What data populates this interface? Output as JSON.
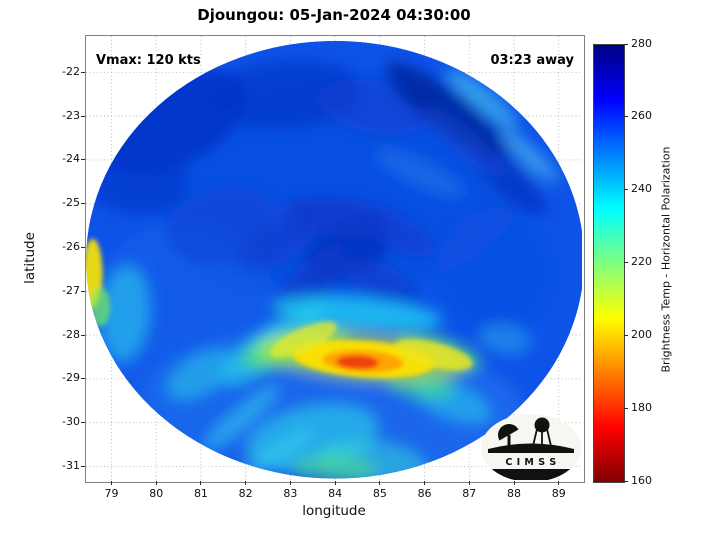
{
  "logo": {
    "text": "C I M S S"
  },
  "chart_data": {
    "type": "heatmap",
    "title": "Djoungou: 05-Jan-2024 04:30:00",
    "annotations": {
      "vmax": "Vmax: 120 kts",
      "eta": "03:23 away"
    },
    "xlabel": "longitude",
    "ylabel": "latitude",
    "xlim": [
      78.43,
      89.52
    ],
    "ylim": [
      -31.31,
      -21.17
    ],
    "x_ticks": [
      79,
      80,
      81,
      82,
      83,
      84,
      85,
      86,
      87,
      88,
      89
    ],
    "y_ticks": [
      -22,
      -23,
      -24,
      -25,
      -26,
      -27,
      -28,
      -29,
      -30,
      -31
    ],
    "grid": true,
    "colorbar": {
      "label": "Brightness Temp - Horizontal Polarization",
      "range": [
        160,
        280
      ],
      "ticks": [
        160,
        180,
        200,
        220,
        240,
        260,
        280
      ],
      "colormap": "jet-reversed",
      "stops": [
        {
          "frac": 0.0,
          "color": "#7f0000"
        },
        {
          "frac": 0.125,
          "color": "#ff0000"
        },
        {
          "frac": 0.375,
          "color": "#ffff00"
        },
        {
          "frac": 0.625,
          "color": "#00ffff"
        },
        {
          "frac": 0.875,
          "color": "#0000ff"
        },
        {
          "frac": 1.0,
          "color": "#000080"
        }
      ]
    },
    "swath": {
      "center_lon": 84.0,
      "center_lat": -26.28,
      "rx_deg": 5.57,
      "ry_deg": 5.0,
      "base_color": "#0d53e8"
    },
    "features": [
      {
        "lon": 84.2,
        "lat": -24.6,
        "rx": 4.2,
        "ry": 2.6,
        "rot": -8,
        "color": "#0b49dc",
        "opacity": 0.5,
        "layer": "soft"
      },
      {
        "lon": 84.0,
        "lat": -29.6,
        "rx": 4.3,
        "ry": 1.7,
        "rot": 4,
        "color": "#2e83f0",
        "opacity": 0.4,
        "layer": "soft"
      },
      {
        "lon": 80.6,
        "lat": -27.8,
        "rx": 2.2,
        "ry": 2.4,
        "rot": 0,
        "color": "#1b66ea",
        "opacity": 0.4,
        "layer": "soft"
      },
      {
        "lon": 80.3,
        "lat": -23.1,
        "rx": 1.8,
        "ry": 1.05,
        "rot": -24,
        "color": "#0531c4",
        "opacity": 0.8,
        "layer": "soft"
      },
      {
        "lon": 79.5,
        "lat": -24.4,
        "rx": 1.2,
        "ry": 0.85,
        "rot": 8,
        "color": "#0636c9",
        "opacity": 0.65,
        "layer": "soft"
      },
      {
        "lon": 82.9,
        "lat": -22.5,
        "rx": 1.7,
        "ry": 0.8,
        "rot": -4,
        "color": "#0634c4",
        "opacity": 0.6,
        "layer": "soft"
      },
      {
        "lon": 84.9,
        "lat": -22.8,
        "rx": 1.3,
        "ry": 0.6,
        "rot": 10,
        "color": "#0a3cd0",
        "opacity": 0.5,
        "layer": "soft"
      },
      {
        "lon": 86.5,
        "lat": -22.9,
        "rx": 1.7,
        "ry": 0.45,
        "rot": 38,
        "color": "#05259c",
        "opacity": 0.85,
        "layer": "soft"
      },
      {
        "lon": 87.9,
        "lat": -24.5,
        "rx": 1.1,
        "ry": 0.33,
        "rot": 42,
        "color": "#0730bd",
        "opacity": 0.7,
        "layer": "soft"
      },
      {
        "lon": 86.9,
        "lat": -23.6,
        "rx": 1.2,
        "ry": 0.3,
        "rot": 40,
        "color": "#0a47d6",
        "opacity": 0.5,
        "layer": "soft"
      },
      {
        "lon": 84.25,
        "lat": -26.1,
        "rx": 1.0,
        "ry": 0.6,
        "rot": -22,
        "color": "#0634bf",
        "opacity": 0.85,
        "layer": "soft"
      },
      {
        "lon": 83.4,
        "lat": -26.85,
        "rx": 1.1,
        "ry": 0.42,
        "rot": -48,
        "color": "#083ac9",
        "opacity": 0.75,
        "layer": "soft"
      },
      {
        "lon": 85.05,
        "lat": -26.8,
        "rx": 0.95,
        "ry": 0.4,
        "rot": 28,
        "color": "#083ac9",
        "opacity": 0.6,
        "layer": "soft"
      },
      {
        "lon": 84.0,
        "lat": -25.3,
        "rx": 1.15,
        "ry": 0.45,
        "rot": 8,
        "color": "#0835c2",
        "opacity": 0.6,
        "layer": "soft"
      },
      {
        "lon": 85.3,
        "lat": -25.6,
        "rx": 1.0,
        "ry": 0.4,
        "rot": 30,
        "color": "#0939cc",
        "opacity": 0.55,
        "layer": "soft"
      },
      {
        "lon": 82.7,
        "lat": -25.9,
        "rx": 1.0,
        "ry": 0.45,
        "rot": -30,
        "color": "#0939cc",
        "opacity": 0.55,
        "layer": "soft"
      },
      {
        "lon": 81.5,
        "lat": -25.5,
        "rx": 1.3,
        "ry": 0.85,
        "rot": -12,
        "color": "#0a40d2",
        "opacity": 0.5,
        "layer": "soft"
      },
      {
        "lon": 84.7,
        "lat": -27.95,
        "rx": 2.0,
        "ry": 0.32,
        "rot": 4,
        "color": "#0a42d4",
        "opacity": 0.55,
        "layer": "soft"
      },
      {
        "lon": 87.6,
        "lat": -26.6,
        "rx": 1.3,
        "ry": 1.5,
        "rot": 0,
        "color": "#0c4fe2",
        "opacity": 0.5,
        "layer": "soft"
      },
      {
        "lon": 84.5,
        "lat": -27.5,
        "rx": 1.9,
        "ry": 0.36,
        "rot": 5,
        "color": "#1ecdf2",
        "opacity": 0.8,
        "layer": "soft"
      },
      {
        "lon": 82.9,
        "lat": -27.95,
        "rx": 0.95,
        "ry": 0.34,
        "rot": -32,
        "color": "#26d6f0",
        "opacity": 0.7,
        "layer": "soft"
      },
      {
        "lon": 82.2,
        "lat": -28.5,
        "rx": 0.9,
        "ry": 0.4,
        "rot": -38,
        "color": "#2ad8ee",
        "opacity": 0.6,
        "layer": "soft"
      },
      {
        "lon": 83.5,
        "lat": -30.35,
        "rx": 1.5,
        "ry": 0.75,
        "rot": -12,
        "color": "#2bd5e8",
        "opacity": 0.6,
        "layer": "soft"
      },
      {
        "lon": 84.8,
        "lat": -30.9,
        "rx": 1.25,
        "ry": 0.5,
        "rot": 6,
        "color": "#36d9d8",
        "opacity": 0.55,
        "layer": "soft"
      },
      {
        "lon": 81.0,
        "lat": -28.9,
        "rx": 0.85,
        "ry": 0.45,
        "rot": -30,
        "color": "#2bd4ea",
        "opacity": 0.5,
        "layer": "soft"
      },
      {
        "lon": 79.3,
        "lat": -27.5,
        "rx": 0.55,
        "ry": 1.1,
        "rot": 4,
        "color": "#2ed8ec",
        "opacity": 0.55,
        "layer": "soft"
      },
      {
        "lon": 86.6,
        "lat": -29.5,
        "rx": 0.95,
        "ry": 0.42,
        "rot": 22,
        "color": "#28d0ee",
        "opacity": 0.55,
        "layer": "soft"
      },
      {
        "lon": 87.8,
        "lat": -28.1,
        "rx": 0.6,
        "ry": 0.35,
        "rot": 10,
        "color": "#2fb4ee",
        "opacity": 0.45,
        "layer": "soft"
      },
      {
        "lon": 81.9,
        "lat": -29.9,
        "rx": 1.1,
        "ry": 0.24,
        "rot": -40,
        "color": "#33daee",
        "opacity": 0.5,
        "layer": "soft"
      },
      {
        "lon": 82.7,
        "lat": -30.7,
        "rx": 1.0,
        "ry": 0.22,
        "rot": -34,
        "color": "#38dcee",
        "opacity": 0.45,
        "layer": "soft"
      },
      {
        "lon": 87.3,
        "lat": -22.6,
        "rx": 1.0,
        "ry": 0.24,
        "rot": 40,
        "color": "#55e5f3",
        "opacity": 0.5,
        "layer": "soft"
      },
      {
        "lon": 88.35,
        "lat": -23.9,
        "rx": 0.85,
        "ry": 0.2,
        "rot": 43,
        "color": "#68e9f4",
        "opacity": 0.45,
        "layer": "soft"
      },
      {
        "lon": 85.9,
        "lat": -24.3,
        "rx": 1.1,
        "ry": 0.3,
        "rot": 25,
        "color": "#2f86ee",
        "opacity": 0.4,
        "layer": "soft"
      },
      {
        "lon": 83.1,
        "lat": -28.3,
        "rx": 1.25,
        "ry": 0.38,
        "rot": -14,
        "color": "#4fe07c",
        "opacity": 0.8,
        "layer": "soft"
      },
      {
        "lon": 86.3,
        "lat": -28.4,
        "rx": 1.0,
        "ry": 0.33,
        "rot": 16,
        "color": "#52e27e",
        "opacity": 0.75,
        "layer": "soft"
      },
      {
        "lon": 85.9,
        "lat": -29.15,
        "rx": 0.8,
        "ry": 0.3,
        "rot": 10,
        "color": "#46dd88",
        "opacity": 0.6,
        "layer": "soft"
      },
      {
        "lon": 84.0,
        "lat": -31.05,
        "rx": 0.95,
        "ry": 0.33,
        "rot": 2,
        "color": "#55e07e",
        "opacity": 0.5,
        "layer": "soft"
      },
      {
        "lon": 84.6,
        "lat": -28.5,
        "rx": 2.35,
        "ry": 0.55,
        "rot": 5,
        "color": "#c8e62e",
        "opacity": 0.6,
        "layer": "soft"
      },
      {
        "lon": 84.65,
        "lat": -28.55,
        "rx": 1.6,
        "ry": 0.42,
        "rot": 4,
        "color": "#ffdf05",
        "opacity": 0.95,
        "layer": "sharp"
      },
      {
        "lon": 86.2,
        "lat": -28.45,
        "rx": 0.9,
        "ry": 0.28,
        "rot": 14,
        "color": "#eee41e",
        "opacity": 0.8,
        "layer": "sharp"
      },
      {
        "lon": 83.3,
        "lat": -28.1,
        "rx": 0.8,
        "ry": 0.26,
        "rot": -24,
        "color": "#e3e92e",
        "opacity": 0.75,
        "layer": "sharp"
      },
      {
        "lon": 84.62,
        "lat": -28.6,
        "rx": 0.9,
        "ry": 0.25,
        "rot": 3,
        "color": "#ff9d06",
        "opacity": 0.9,
        "layer": "sharp"
      },
      {
        "lon": 84.5,
        "lat": -28.62,
        "rx": 0.48,
        "ry": 0.16,
        "rot": 2,
        "color": "#ee3a0a",
        "opacity": 0.95,
        "layer": "sharp"
      },
      {
        "lon": 78.58,
        "lat": -26.6,
        "rx": 0.22,
        "ry": 0.8,
        "rot": 0,
        "color": "#ffe606",
        "opacity": 0.9,
        "layer": "sharp"
      },
      {
        "lon": 78.75,
        "lat": -27.35,
        "rx": 0.22,
        "ry": 0.45,
        "rot": 0,
        "color": "#77e75c",
        "opacity": 0.7,
        "layer": "sharp"
      }
    ]
  }
}
